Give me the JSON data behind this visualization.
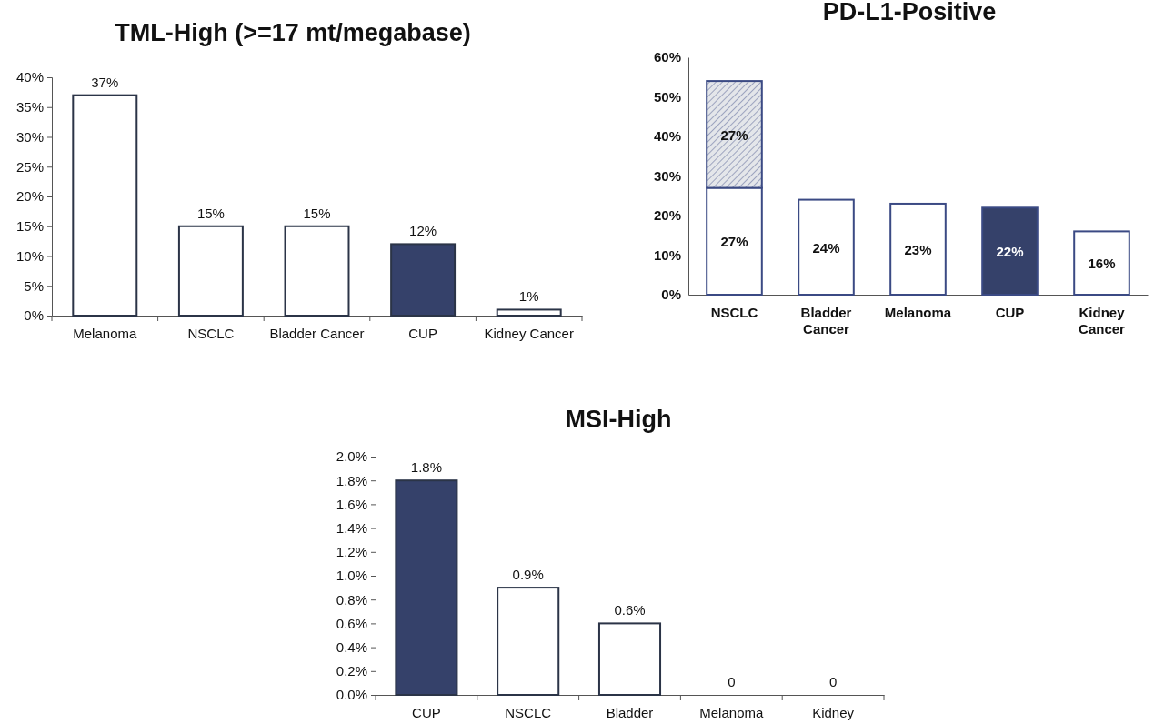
{
  "chart_data": [
    {
      "type": "bar",
      "title": "TML-High (>=17 mt/megabase)",
      "categories": [
        "Melanoma",
        "NSCLC",
        "Bladder Cancer",
        "CUP",
        "Kidney Cancer"
      ],
      "series": [
        {
          "values": [
            37,
            15,
            15,
            12,
            1
          ],
          "colors": [
            "#ffffff",
            "#ffffff",
            "#ffffff",
            "#35416a",
            "#ffffff"
          ],
          "value_labels": [
            "37%",
            "15%",
            "15%",
            "12%",
            "1%"
          ]
        }
      ],
      "ylim": [
        0,
        40
      ],
      "yticks": [
        {
          "value": 0,
          "label": "0%"
        },
        {
          "value": 5,
          "label": "5%"
        },
        {
          "value": 10,
          "label": "10%"
        },
        {
          "value": 15,
          "label": "15%"
        },
        {
          "value": 20,
          "label": "20%"
        },
        {
          "value": 25,
          "label": "25%"
        },
        {
          "value": 30,
          "label": "30%"
        },
        {
          "value": 35,
          "label": "35%"
        },
        {
          "value": 40,
          "label": "40%"
        }
      ],
      "grid": false
    },
    {
      "type": "bar",
      "title": "PD-L1-Positive",
      "stacked": true,
      "categories": [
        "NSCLC",
        "Bladder Cancer",
        "Melanoma",
        "CUP",
        "Kidney Cancer"
      ],
      "series": [
        {
          "values": [
            27,
            24,
            23,
            22,
            16
          ],
          "colors": [
            "#ffffff",
            "#ffffff",
            "#ffffff",
            "#35416a",
            "#ffffff"
          ],
          "value_labels": [
            "27%",
            "24%",
            "23%",
            "22%",
            "16%"
          ]
        },
        {
          "values": [
            27,
            null,
            null,
            null,
            null
          ],
          "color": "#3b4a84",
          "value_labels": [
            "27%",
            null,
            null,
            null,
            null
          ]
        }
      ],
      "ylim": [
        0,
        60
      ],
      "yticks": [
        {
          "value": 0,
          "label": "0%"
        },
        {
          "value": 10,
          "label": "10%"
        },
        {
          "value": 20,
          "label": "20%"
        },
        {
          "value": 30,
          "label": "30%"
        },
        {
          "value": 40,
          "label": "40%"
        },
        {
          "value": 50,
          "label": "50%"
        },
        {
          "value": 60,
          "label": "60%"
        }
      ],
      "grid": false
    },
    {
      "type": "bar",
      "title": "MSI-High",
      "categories": [
        "CUP",
        "NSCLC",
        "Bladder",
        "Melanoma",
        "Kidney"
      ],
      "series": [
        {
          "values": [
            1.8,
            0.9,
            0.6,
            0,
            0
          ],
          "colors": [
            "#35416a",
            "#ffffff",
            "#ffffff",
            "#ffffff",
            "#ffffff"
          ],
          "value_labels": [
            "1.8%",
            "0.9%",
            "0.6%",
            "0",
            "0"
          ]
        }
      ],
      "ylim": [
        0,
        2
      ],
      "yticks": [
        {
          "value": 0,
          "label": "0.0%"
        },
        {
          "value": 0.2,
          "label": "0.2%"
        },
        {
          "value": 0.4,
          "label": "0.4%"
        },
        {
          "value": 0.6,
          "label": "0.6%"
        },
        {
          "value": 0.8,
          "label": "0.8%"
        },
        {
          "value": 1,
          "label": "1.0%"
        },
        {
          "value": 1.2,
          "label": "1.2%"
        },
        {
          "value": 1.4,
          "label": "1.4%"
        },
        {
          "value": 1.6,
          "label": "1.6%"
        },
        {
          "value": 1.8,
          "label": "1.8%"
        },
        {
          "value": 2,
          "label": "2.0%"
        }
      ],
      "grid": false
    }
  ]
}
